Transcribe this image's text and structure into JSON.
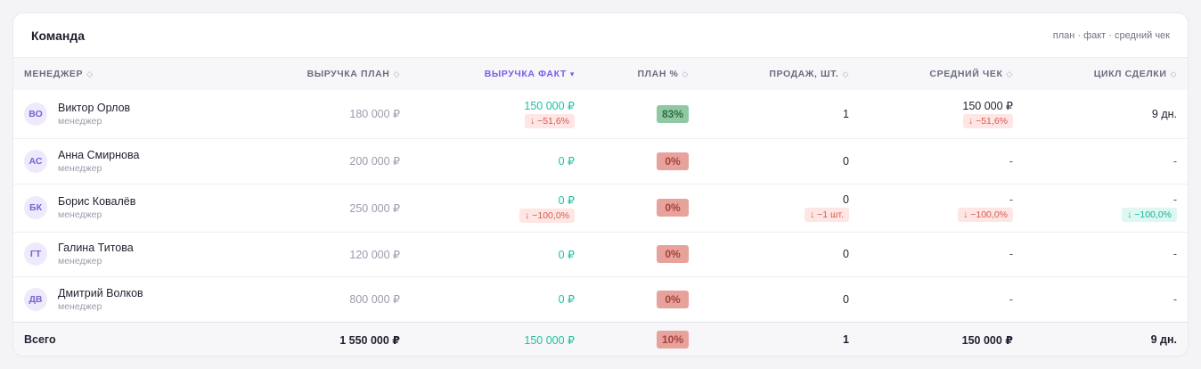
{
  "card": {
    "title": "Команда",
    "hint": "план · факт · средний чек"
  },
  "columns": [
    {
      "label": "Менеджер",
      "sort": "◇"
    },
    {
      "label": "Выручка план",
      "sort": "◇"
    },
    {
      "label": "Выручка факт",
      "sort": "▾"
    },
    {
      "label": "План %",
      "sort": "◇"
    },
    {
      "label": "Продаж, шт.",
      "sort": "◇"
    },
    {
      "label": "Средний чек",
      "sort": "◇"
    },
    {
      "label": "Цикл сделки",
      "sort": "◇"
    }
  ],
  "rows": [
    {
      "initials": "ВО",
      "name": "Виктор Орлов",
      "role": "менеджер",
      "plan": "180 000 ₽",
      "fact": "150 000 ₽",
      "fact_delta": "↓ −51,6%",
      "pct": "83%",
      "sales": "1",
      "sales_delta": "",
      "avg": "150 000 ₽",
      "avg_delta": "↓ −51,6%",
      "cycle": "9 дн.",
      "cycle_delta": ""
    },
    {
      "initials": "АС",
      "name": "Анна Смирнова",
      "role": "менеджер",
      "plan": "200 000 ₽",
      "fact": "0 ₽",
      "fact_delta": "",
      "pct": "0%",
      "sales": "0",
      "sales_delta": "",
      "avg": "-",
      "avg_delta": "",
      "cycle": "-",
      "cycle_delta": ""
    },
    {
      "initials": "БК",
      "name": "Борис Ковалёв",
      "role": "менеджер",
      "plan": "250 000 ₽",
      "fact": "0 ₽",
      "fact_delta": "↓ −100,0%",
      "pct": "0%",
      "sales": "0",
      "sales_delta": "↓ −1 шт.",
      "avg": "-",
      "avg_delta": "↓ −100,0%",
      "cycle": "-",
      "cycle_delta": "↓ −100,0%"
    },
    {
      "initials": "ГТ",
      "name": "Галина Титова",
      "role": "менеджер",
      "plan": "120 000 ₽",
      "fact": "0 ₽",
      "fact_delta": "",
      "pct": "0%",
      "sales": "0",
      "sales_delta": "",
      "avg": "-",
      "avg_delta": "",
      "cycle": "-",
      "cycle_delta": ""
    },
    {
      "initials": "ДВ",
      "name": "Дмитрий Волков",
      "role": "менеджер",
      "plan": "800 000 ₽",
      "fact": "0 ₽",
      "fact_delta": "",
      "pct": "0%",
      "sales": "0",
      "sales_delta": "",
      "avg": "-",
      "avg_delta": "",
      "cycle": "-",
      "cycle_delta": ""
    }
  ],
  "total": {
    "label": "Всего",
    "plan": "1 550 000 ₽",
    "fact": "150 000 ₽",
    "pct": "10%",
    "sales": "1",
    "avg": "150 000 ₽",
    "cycle": "9 дн."
  },
  "colors": {
    "accent": "#7c5ce6",
    "fact_green": "#1fbfa3",
    "pct_ok": "#8fc8a1",
    "pct_bad": "#e6a29b",
    "delta_neg": "#d9594f",
    "delta_pos": "#19b394"
  }
}
